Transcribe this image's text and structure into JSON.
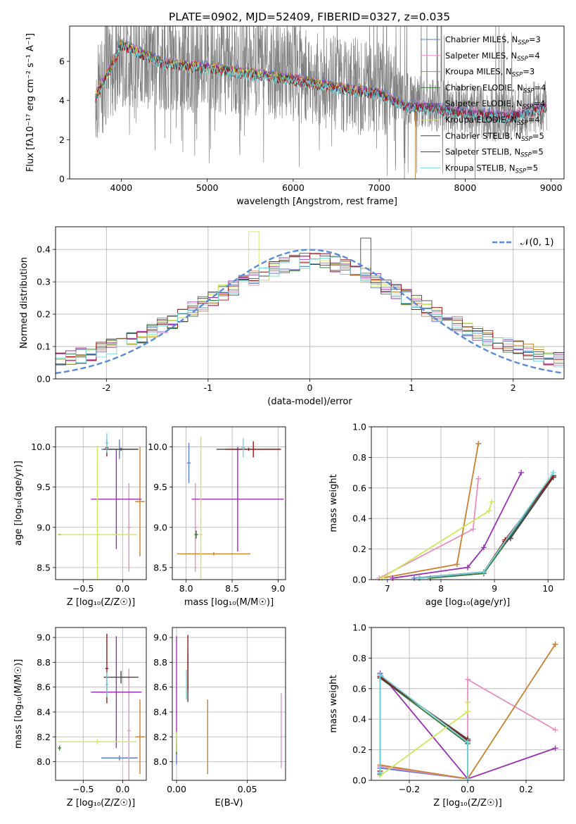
{
  "figure": {
    "title": "PLATE=0902, MJD=52409, FIBERID=0327, z=0.035"
  },
  "series": [
    {
      "name": "Chabrier MILES",
      "nssp": "3",
      "color": "#5b7dcf"
    },
    {
      "name": "Salpeter MILES",
      "nssp": "4",
      "color": "#e88ec3"
    },
    {
      "name": "Kroupa MILES",
      "nssp": "3",
      "color": "#c8822c"
    },
    {
      "name": "Chabrier ELODIE",
      "nssp": "4",
      "color": "#3d7a3d"
    },
    {
      "name": "Salpeter ELODIE",
      "nssp": "4",
      "color": "#9b2fb5"
    },
    {
      "name": "Kroupa ELODIE",
      "nssp": "4",
      "color": "#cfe85a"
    },
    {
      "name": "Chabrier STELIB",
      "nssp": "5",
      "color": "#444444"
    },
    {
      "name": "Salpeter STELIB",
      "nssp": "5",
      "color": "#a01515"
    },
    {
      "name": "Kroupa STELIB",
      "nssp": "5",
      "color": "#6fd7dc"
    }
  ],
  "chart_data": [
    {
      "type": "line",
      "title": "PLATE=0902, MJD=52409, FIBERID=0327, z=0.035",
      "xlabel": "wavelength [Angstrom, rest frame]",
      "ylabel": "Flux [fλ10⁻¹⁷ erg cm⁻² s⁻¹ A⁻¹]",
      "xlim": [
        3400,
        9150
      ],
      "ylim": [
        0,
        7.8
      ],
      "xticks": [
        4000,
        5000,
        6000,
        7000,
        8000,
        9000
      ],
      "yticks": [
        0,
        2,
        4,
        6
      ],
      "data_color": "#808080",
      "data_sample": {
        "x": [
          3700,
          4000,
          4500,
          5000,
          5500,
          6000,
          6500,
          7000,
          7500,
          8000,
          8500,
          8950
        ],
        "y": [
          4.2,
          6.2,
          6.0,
          5.8,
          5.7,
          5.4,
          4.9,
          4.6,
          3.9,
          3.5,
          3.2,
          3.8
        ]
      },
      "model_sample": {
        "x": [
          3700,
          3900,
          4000,
          4200,
          4500,
          5000,
          5500,
          6000,
          6500,
          7000,
          7300,
          7500,
          8000,
          8500,
          8950
        ],
        "y": [
          4.3,
          6.0,
          7.0,
          6.6,
          6.0,
          5.8,
          5.5,
          5.2,
          4.8,
          4.5,
          3.8,
          3.8,
          3.5,
          3.3,
          3.8
        ]
      },
      "grid": false,
      "legend": "top-right"
    },
    {
      "type": "histogram",
      "xlabel": "(data-model)/error",
      "ylabel": "Normed distribution",
      "xlim": [
        -2.5,
        2.5
      ],
      "ylim": [
        0,
        0.47
      ],
      "xticks": [
        -2,
        -1,
        0,
        1,
        2
      ],
      "yticks": [
        0.0,
        0.1,
        0.2,
        0.3,
        0.4
      ],
      "reference_curve": {
        "label": "𝒩(0, 1)",
        "mean": 0,
        "sigma": 1,
        "color": "#5b8bd8"
      },
      "grid": true,
      "legend": "top-right"
    },
    {
      "type": "errorbar",
      "xlabel": "Z [log₁₀(Z/Z☉)]",
      "ylabel": "age  [log₁₀(age/yr)]",
      "xlim": [
        -0.85,
        0.3
      ],
      "ylim": [
        8.35,
        10.25
      ],
      "xticks": [
        -0.5,
        0.0
      ],
      "yticks": [
        8.5,
        9.0,
        9.5,
        10.0
      ],
      "points": [
        {
          "s": 0,
          "x": -0.04,
          "y": 9.97,
          "xerr": 0.23,
          "yerr": 0.12
        },
        {
          "s": 1,
          "x": 0.08,
          "y": 9.0,
          "xerr": 0.02,
          "yerr": 0.55
        },
        {
          "s": 2,
          "x": 0.22,
          "y": 9.32,
          "xerr": 0.06,
          "yerr": 0.68
        },
        {
          "s": 3,
          "x": -0.8,
          "y": 8.91,
          "xerr": 0.02,
          "yerr": 0.01
        },
        {
          "s": 4,
          "x": -0.08,
          "y": 9.35,
          "xerr": 0.32,
          "yerr": 0.62
        },
        {
          "s": 5,
          "x": -0.32,
          "y": 8.91,
          "xerr": 0.5,
          "yerr": 1.1
        },
        {
          "s": 6,
          "x": -0.02,
          "y": 9.97,
          "xerr": 0.22,
          "yerr": 0.02
        },
        {
          "s": 7,
          "x": -0.2,
          "y": 9.99,
          "xerr": 0.02,
          "yerr": 0.11
        },
        {
          "s": 8,
          "x": -0.2,
          "y": 10.05,
          "xerr": 0.02,
          "yerr": 0.12
        }
      ],
      "grid": true
    },
    {
      "type": "errorbar",
      "xlabel": "mass [log₁₀(M/M☉)]",
      "ylabel": "",
      "xlim": [
        7.85,
        9.08
      ],
      "ylim": [
        8.35,
        10.25
      ],
      "xticks": [
        8.0,
        8.5,
        9.0
      ],
      "yticks": [
        8.5,
        9.0,
        9.5,
        10.0
      ],
      "points": [
        {
          "s": 0,
          "x": 8.03,
          "y": 9.8,
          "xerr": 0.02,
          "yerr": 0.25
        },
        {
          "s": 1,
          "x": 8.1,
          "y": 9.0,
          "xerr": 0.02,
          "yerr": 0.55
        },
        {
          "s": 2,
          "x": 8.3,
          "y": 8.67,
          "xerr": 0.4,
          "yerr": 0.02
        },
        {
          "s": 3,
          "x": 8.11,
          "y": 8.91,
          "xerr": 0.02,
          "yerr": 0.05
        },
        {
          "s": 4,
          "x": 8.56,
          "y": 9.35,
          "xerr": 0.5,
          "yerr": 0.65
        },
        {
          "s": 5,
          "x": 8.16,
          "y": 8.91,
          "xerr": 0.02,
          "yerr": 1.22
        },
        {
          "s": 6,
          "x": 8.68,
          "y": 9.97,
          "xerr": 0.35,
          "yerr": 0.02
        },
        {
          "s": 7,
          "x": 8.73,
          "y": 9.97,
          "xerr": 0.3,
          "yerr": 0.1
        },
        {
          "s": 8,
          "x": 8.62,
          "y": 9.99,
          "xerr": 0.02,
          "yerr": 0.12
        }
      ],
      "grid": true
    },
    {
      "type": "line",
      "xlabel": "age  [log₁₀(age/yr)]",
      "ylabel": "mass weight",
      "xlim": [
        6.7,
        10.3
      ],
      "ylim": [
        0,
        1.0
      ],
      "xticks": [
        7,
        8,
        9,
        10
      ],
      "yticks": [
        0.0,
        0.2,
        0.4,
        0.6,
        0.8,
        1.0
      ],
      "lines": [
        {
          "s": 0,
          "x": [
            7.5,
            8.8,
            10.1
          ],
          "y": [
            0.01,
            0.05,
            0.68
          ]
        },
        {
          "s": 1,
          "x": [
            6.85,
            8.6,
            8.7
          ],
          "y": [
            0.01,
            0.33,
            0.66
          ]
        },
        {
          "s": 2,
          "x": [
            6.9,
            8.3,
            8.7
          ],
          "y": [
            0.01,
            0.1,
            0.89
          ]
        },
        {
          "s": 3,
          "x": [
            7.8,
            8.8,
            10.1
          ],
          "y": [
            0.01,
            0.04,
            0.67
          ]
        },
        {
          "s": 4,
          "x": [
            7.1,
            8.5,
            8.8,
            9.5
          ],
          "y": [
            0.01,
            0.08,
            0.21,
            0.7
          ]
        },
        {
          "s": 5,
          "x": [
            6.9,
            8.9,
            8.95
          ],
          "y": [
            0.01,
            0.45,
            0.51
          ]
        },
        {
          "s": 6,
          "x": [
            7.6,
            8.8,
            9.2,
            9.3,
            10.1
          ],
          "y": [
            0.01,
            0.05,
            0.25,
            0.27,
            0.67
          ]
        },
        {
          "s": 7,
          "x": [
            7.6,
            8.8,
            9.2,
            10.1
          ],
          "y": [
            0.01,
            0.05,
            0.26,
            0.68
          ]
        },
        {
          "s": 8,
          "x": [
            7.6,
            8.8,
            10.1
          ],
          "y": [
            0.01,
            0.05,
            0.7
          ]
        }
      ],
      "grid": true
    },
    {
      "type": "errorbar",
      "xlabel": "Z [log₁₀(Z/Z☉)]",
      "ylabel": "mass [log₁₀(M/M☉)]",
      "xlim": [
        -0.85,
        0.3
      ],
      "ylim": [
        7.85,
        9.08
      ],
      "xticks": [
        -0.5,
        0.0
      ],
      "yticks": [
        8.0,
        8.2,
        8.4,
        8.6,
        8.8,
        9.0
      ],
      "points": [
        {
          "s": 0,
          "x": -0.04,
          "y": 8.03,
          "xerr": 0.23,
          "yerr": 0.02
        },
        {
          "s": 1,
          "x": 0.08,
          "y": 8.25,
          "xerr": 0.02,
          "yerr": 0.5
        },
        {
          "s": 2,
          "x": 0.22,
          "y": 8.2,
          "xerr": 0.06,
          "yerr": 0.3
        },
        {
          "s": 3,
          "x": -0.8,
          "y": 8.11,
          "xerr": 0.02,
          "yerr": 0.02
        },
        {
          "s": 4,
          "x": -0.08,
          "y": 8.56,
          "xerr": 0.32,
          "yerr": 0.45
        },
        {
          "s": 5,
          "x": -0.32,
          "y": 8.16,
          "xerr": 0.5,
          "yerr": 0.02
        },
        {
          "s": 6,
          "x": -0.02,
          "y": 8.68,
          "xerr": 0.22,
          "yerr": 0.05
        },
        {
          "s": 7,
          "x": -0.2,
          "y": 8.75,
          "xerr": 0.02,
          "yerr": 0.28
        },
        {
          "s": 8,
          "x": -0.2,
          "y": 8.62,
          "xerr": 0.02,
          "yerr": 0.1
        }
      ],
      "grid": true
    },
    {
      "type": "errorbar",
      "xlabel": "E(B-V)",
      "ylabel": "",
      "xlim": [
        -0.003,
        0.077
      ],
      "ylim": [
        7.85,
        9.08
      ],
      "xticks": [
        0.0,
        0.05
      ],
      "yticks": [
        8.0,
        8.2,
        8.4,
        8.6,
        8.8,
        9.0
      ],
      "points": [
        {
          "s": 0,
          "x": 0.0,
          "y": 8.03,
          "xerr": 0.0,
          "yerr": 0.05
        },
        {
          "s": 1,
          "x": 0.074,
          "y": 8.25,
          "xerr": 0.0,
          "yerr": 0.3
        },
        {
          "s": 2,
          "x": 0.022,
          "y": 8.2,
          "xerr": 0.0,
          "yerr": 0.3
        },
        {
          "s": 3,
          "x": 0.0,
          "y": 8.11,
          "xerr": 0.0,
          "yerr": 0.05
        },
        {
          "s": 4,
          "x": 0.0,
          "y": 8.56,
          "xerr": 0.0,
          "yerr": 0.45
        },
        {
          "s": 5,
          "x": 0.0,
          "y": 8.16,
          "xerr": 0.0,
          "yerr": 0.08
        },
        {
          "s": 6,
          "x": 0.008,
          "y": 8.68,
          "xerr": 0.0,
          "yerr": 0.2
        },
        {
          "s": 7,
          "x": 0.008,
          "y": 8.8,
          "xerr": 0.0,
          "yerr": 0.22
        },
        {
          "s": 8,
          "x": 0.007,
          "y": 8.62,
          "xerr": 0.0,
          "yerr": 0.12
        }
      ],
      "grid": true
    },
    {
      "type": "line",
      "xlabel": "Z [log₁₀(Z/Z☉)]",
      "ylabel": "mass weight",
      "xlim": [
        -0.33,
        0.33
      ],
      "ylim": [
        0,
        1.0
      ],
      "xticks": [
        -0.2,
        0.0,
        0.2
      ],
      "yticks": [
        0.0,
        0.2,
        0.4,
        0.6,
        0.8,
        1.0
      ],
      "lines": [
        {
          "s": 0,
          "x": [
            -0.3,
            0.0,
            0.0
          ],
          "y": [
            0.08,
            0.01,
            0.25
          ]
        },
        {
          "s": 1,
          "x": [
            -0.3,
            0.0,
            0.0,
            0.3
          ],
          "y": [
            0.09,
            0.01,
            0.66,
            0.33
          ]
        },
        {
          "s": 2,
          "x": [
            -0.3,
            0.0,
            0.3
          ],
          "y": [
            0.1,
            0.01,
            0.89
          ]
        },
        {
          "s": 3,
          "x": [
            -0.3,
            -0.3,
            0.0,
            0.0
          ],
          "y": [
            0.04,
            0.67,
            0.24,
            0.01
          ]
        },
        {
          "s": 4,
          "x": [
            -0.3,
            0.0,
            0.3
          ],
          "y": [
            0.7,
            0.01,
            0.21
          ]
        },
        {
          "s": 5,
          "x": [
            -0.3,
            0.0,
            0.0
          ],
          "y": [
            0.03,
            0.45,
            0.51
          ]
        },
        {
          "s": 6,
          "x": [
            -0.3,
            -0.3,
            0.0
          ],
          "y": [
            0.05,
            0.67,
            0.27
          ]
        },
        {
          "s": 7,
          "x": [
            -0.3,
            -0.3,
            0.0
          ],
          "y": [
            0.06,
            0.68,
            0.26
          ]
        },
        {
          "s": 8,
          "x": [
            -0.3,
            -0.3,
            0.0,
            0.0
          ],
          "y": [
            0.05,
            0.69,
            0.25,
            0.01
          ]
        }
      ],
      "grid": true
    }
  ]
}
